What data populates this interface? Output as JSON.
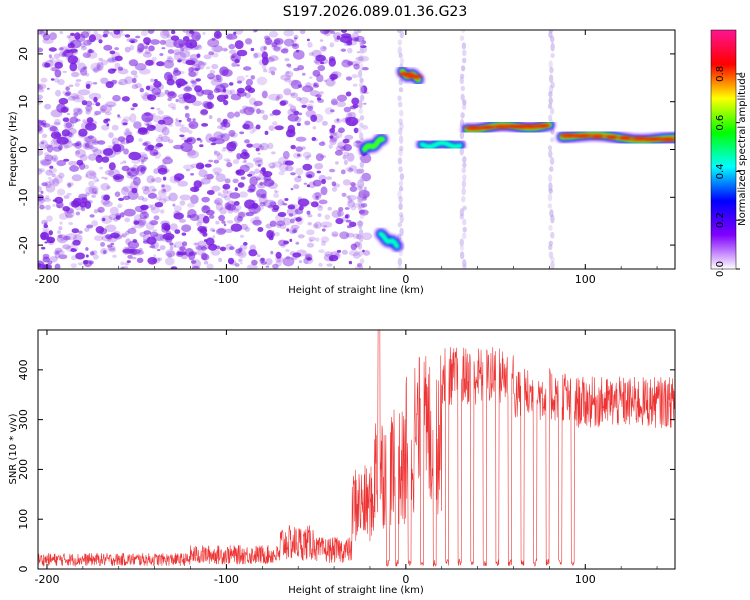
{
  "title": "S197.2026.089.01.36.G23",
  "colors": {
    "snr_line": "#ee3333",
    "ridge_hot": "#ee2200",
    "noise": "#7a20e0",
    "colorbar_stops": [
      "#ffffff",
      "#8000ff",
      "#0000ff",
      "#00ffff",
      "#00ff00",
      "#ffff00",
      "#ff0000",
      "#ff1493"
    ]
  },
  "chart_data": [
    {
      "type": "heatmap",
      "xlabel": "Height of straight line (km)",
      "ylabel": "Frequency (Hz)",
      "xlim": [
        -205,
        150
      ],
      "ylim": [
        -25,
        25
      ],
      "xticks": [
        -200,
        -100,
        0,
        100
      ],
      "xtick_labels": [
        "-200",
        "-100",
        "0",
        "100"
      ],
      "yticks": [
        -20,
        -10,
        0,
        10,
        20
      ],
      "ytick_labels": [
        "-20",
        "-10",
        "0",
        "10",
        "20"
      ],
      "colorbar": {
        "label": "Normalized spectral amplitude",
        "range": [
          0,
          0.98
        ],
        "ticks": [
          0.0,
          0.2,
          0.4,
          0.6,
          0.8
        ],
        "tick_labels": [
          "0.0",
          "0.2",
          "0.4",
          "0.6",
          "0.8"
        ]
      },
      "noise_region_km": [
        -205,
        -30
      ],
      "ridges": [
        {
          "x0": -23,
          "x1": -13,
          "f0": 0,
          "f1": 2,
          "peak": 0.6
        },
        {
          "x0": -14,
          "x1": -5,
          "f0": -18,
          "f1": -20,
          "peak": 0.45
        },
        {
          "x0": -2,
          "x1": 7,
          "f0": 16,
          "f1": 15,
          "peak": 0.8
        },
        {
          "x0": 9,
          "x1": 30,
          "f0": 1,
          "f1": 1,
          "peak": 0.45
        },
        {
          "x0": 34,
          "x1": 80,
          "f0": 4.5,
          "f1": 5,
          "peak": 0.8
        },
        {
          "x0": 87,
          "x1": 150,
          "f0": 3,
          "f1": 2,
          "peak": 0.85
        }
      ],
      "vertical_streaks_km": [
        -25,
        -3,
        32,
        81
      ]
    },
    {
      "type": "line",
      "xlabel": "Height of straight line (km)",
      "ylabel": "SNR (10 * v/v)",
      "xlim": [
        -205,
        150
      ],
      "ylim": [
        0,
        480
      ],
      "xticks": [
        -200,
        -100,
        0,
        100
      ],
      "xtick_labels": [
        "-200",
        "-100",
        "0",
        "100"
      ],
      "yticks": [
        0,
        100,
        200,
        300,
        400
      ],
      "ytick_labels": [
        "0",
        "100",
        "200",
        "300",
        "400"
      ],
      "baseline_segments": [
        {
          "x0": -205,
          "x1": -120,
          "level": 20
        },
        {
          "x0": -120,
          "x1": -70,
          "level": 30
        },
        {
          "x0": -70,
          "x1": -50,
          "level": 55
        },
        {
          "x0": -50,
          "x1": -30,
          "level": 40
        },
        {
          "x0": -30,
          "x1": -18,
          "level": 130
        },
        {
          "x0": -18,
          "x1": 0,
          "level": 200
        },
        {
          "x0": 0,
          "x1": 20,
          "level": 270
        },
        {
          "x0": 20,
          "x1": 60,
          "level": 400
        },
        {
          "x0": 60,
          "x1": 90,
          "level": 360
        },
        {
          "x0": 90,
          "x1": 150,
          "level": 345
        }
      ],
      "spike_peak": {
        "x": -15,
        "y": 480
      },
      "dropout_centers_km": [
        -10,
        -5,
        2,
        9,
        16,
        23,
        30,
        37,
        44,
        51,
        58,
        65,
        72,
        79,
        86,
        93
      ]
    }
  ]
}
